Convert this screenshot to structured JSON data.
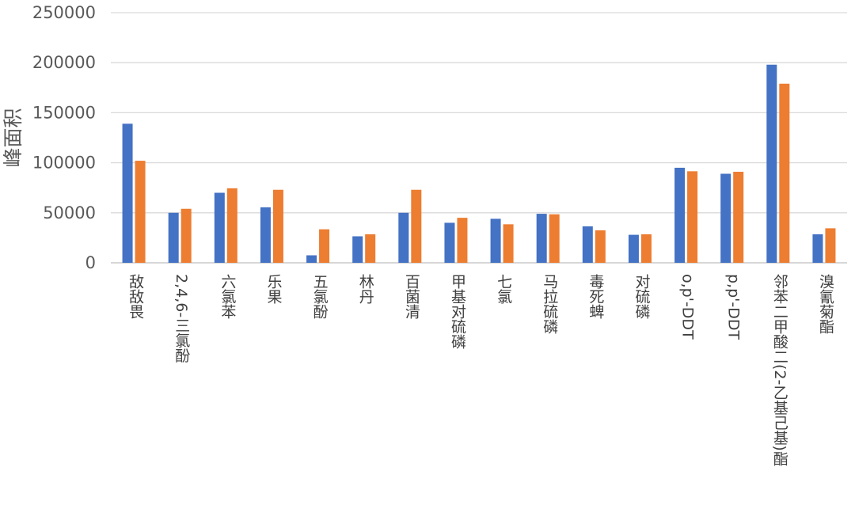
{
  "chart_data": {
    "type": "bar",
    "ylabel": "峰面积",
    "ylim": [
      0,
      250000
    ],
    "yticks": [
      0,
      50000,
      100000,
      150000,
      200000,
      250000
    ],
    "yticks_labels": [
      "0",
      "50000",
      "100000",
      "150000",
      "200000",
      "250000"
    ],
    "grid": true,
    "categories": [
      "敌敌畏",
      "2,4,6-三氯酚",
      "六氯苯",
      "乐果",
      "五氯酚",
      "林丹",
      "百菌清",
      "甲基对硫磷",
      "七氯",
      "马拉硫磷",
      "毒死蜱",
      "对硫磷",
      "o,p'-DDT",
      "p,p'-DDT",
      "邻苯二甲酸二(2-乙基己基)酯",
      "溴氰菊酯"
    ],
    "series": [
      {
        "color": "#4472C4",
        "values": [
          139000,
          50000,
          70000,
          55500,
          7500,
          26500,
          50000,
          40000,
          44000,
          49000,
          36500,
          28000,
          95000,
          89000,
          198000,
          28500
        ]
      },
      {
        "color": "#ED7D31",
        "values": [
          102000,
          54000,
          74500,
          73000,
          33500,
          28500,
          73000,
          45000,
          38500,
          48500,
          32500,
          28500,
          91500,
          91000,
          179000,
          34500
        ]
      }
    ]
  }
}
